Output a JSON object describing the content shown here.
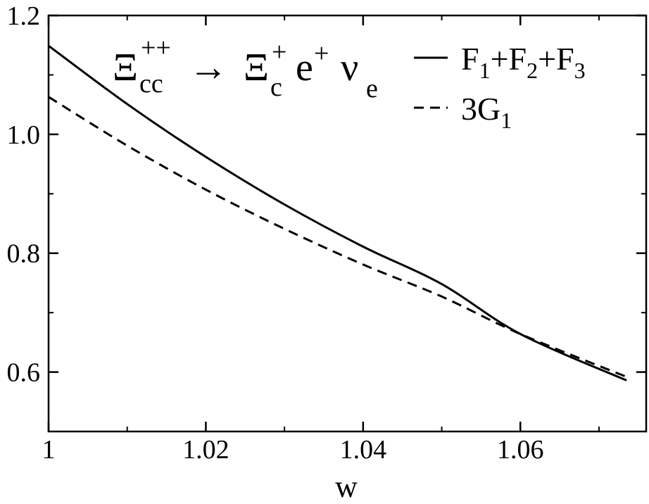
{
  "chart_data": {
    "type": "line",
    "xlabel": "w",
    "ylabel": "",
    "xlim": [
      1.0,
      1.076
    ],
    "ylim": [
      0.5,
      1.2
    ],
    "x_ticks": [
      1.0,
      1.02,
      1.04,
      1.06
    ],
    "x_tick_labels": [
      "1",
      "1.02",
      "1.04",
      "1.06"
    ],
    "y_ticks": [
      0.6,
      0.8,
      1.0,
      1.2
    ],
    "y_tick_labels": [
      "0.6",
      "0.8",
      "1.0",
      "1.2"
    ],
    "grid": false,
    "legend_position": "top-right",
    "annotation": {
      "base1": "Ξ",
      "sub1": "cc",
      "sup1": "++",
      "arrow": "→",
      "base2": "Ξ",
      "sub2": "c",
      "sup2": "+",
      "base3": "e",
      "sup3": "+",
      "base4": "ν",
      "sub4": "e"
    },
    "series": [
      {
        "name": "F1+F2+F3",
        "legend_parts": [
          "F",
          "1",
          "+F",
          "2",
          "+F",
          "3"
        ],
        "style": "solid",
        "color": "#000000",
        "x": [
          1.0,
          1.01,
          1.02,
          1.03,
          1.04,
          1.05,
          1.06,
          1.0735
        ],
        "values": [
          1.149,
          1.051,
          0.962,
          0.882,
          0.811,
          0.748,
          0.664,
          0.586
        ]
      },
      {
        "name": "3G1",
        "legend_parts": [
          "3G",
          "1"
        ],
        "style": "dashed",
        "color": "#000000",
        "x": [
          1.0,
          1.01,
          1.02,
          1.03,
          1.04,
          1.05,
          1.06,
          1.0735
        ],
        "values": [
          1.063,
          0.981,
          0.907,
          0.841,
          0.781,
          0.727,
          0.664,
          0.592
        ]
      }
    ]
  }
}
